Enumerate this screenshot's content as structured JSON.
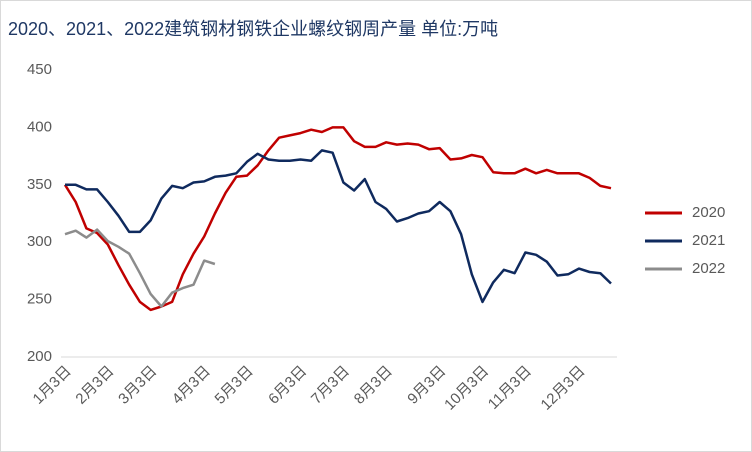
{
  "chart_data": {
    "type": "line",
    "title": "2020、2021、2022建筑钢材钢铁企业螺纹钢周产量 单位:万吨",
    "categories": [
      "1月3日",
      null,
      null,
      null,
      "2月3日",
      null,
      null,
      null,
      "3月3日",
      null,
      null,
      null,
      null,
      "4月3日",
      null,
      null,
      null,
      "5月3日",
      null,
      null,
      null,
      null,
      "6月3日",
      null,
      null,
      null,
      "7月3日",
      null,
      null,
      null,
      "8月3日",
      null,
      null,
      null,
      null,
      "9月3日",
      null,
      null,
      null,
      "10月3日",
      null,
      null,
      null,
      "11月3日",
      null,
      null,
      null,
      null,
      "12月3日",
      null,
      null,
      null
    ],
    "series": [
      {
        "name": "2020",
        "color": "#c00000",
        "values": [
          350,
          335,
          312,
          308,
          298,
          280,
          263,
          248,
          241,
          244,
          248,
          272,
          290,
          305,
          325,
          343,
          357,
          358,
          367,
          380,
          391,
          393,
          395,
          398,
          396,
          400,
          400,
          388,
          383,
          383,
          387,
          385,
          386,
          385,
          381,
          382,
          372,
          373,
          376,
          374,
          361,
          360,
          360,
          364,
          360,
          363,
          360,
          360,
          360,
          356,
          349,
          347
        ]
      },
      {
        "name": "2021",
        "color": "#0f2a5e",
        "values": [
          350,
          350,
          346,
          346,
          335,
          323,
          309,
          309,
          319,
          338,
          349,
          347,
          352,
          353,
          357,
          358,
          360,
          370,
          377,
          372,
          371,
          371,
          372,
          371,
          380,
          378,
          352,
          345,
          355,
          335,
          329,
          318,
          321,
          325,
          327,
          335,
          327,
          307,
          272,
          248,
          265,
          276,
          273,
          291,
          289,
          283,
          271,
          272,
          277,
          274,
          273,
          264
        ]
      },
      {
        "name": "2022",
        "color": "#8c8c8c",
        "values": [
          307,
          310,
          304,
          311,
          301,
          296,
          290,
          273,
          255,
          244,
          256,
          260,
          263,
          284,
          281,
          null,
          null,
          null,
          null,
          null,
          null,
          null,
          null,
          null,
          null,
          null,
          null,
          null,
          null,
          null,
          null,
          null,
          null,
          null,
          null,
          null,
          null,
          null,
          null,
          null,
          null,
          null,
          null,
          null,
          null,
          null,
          null,
          null,
          null,
          null,
          null,
          null
        ]
      }
    ],
    "ylim": [
      200,
      450
    ],
    "yticks": [
      200,
      250,
      300,
      350,
      400,
      450
    ],
    "grid": false,
    "legend": "right"
  }
}
